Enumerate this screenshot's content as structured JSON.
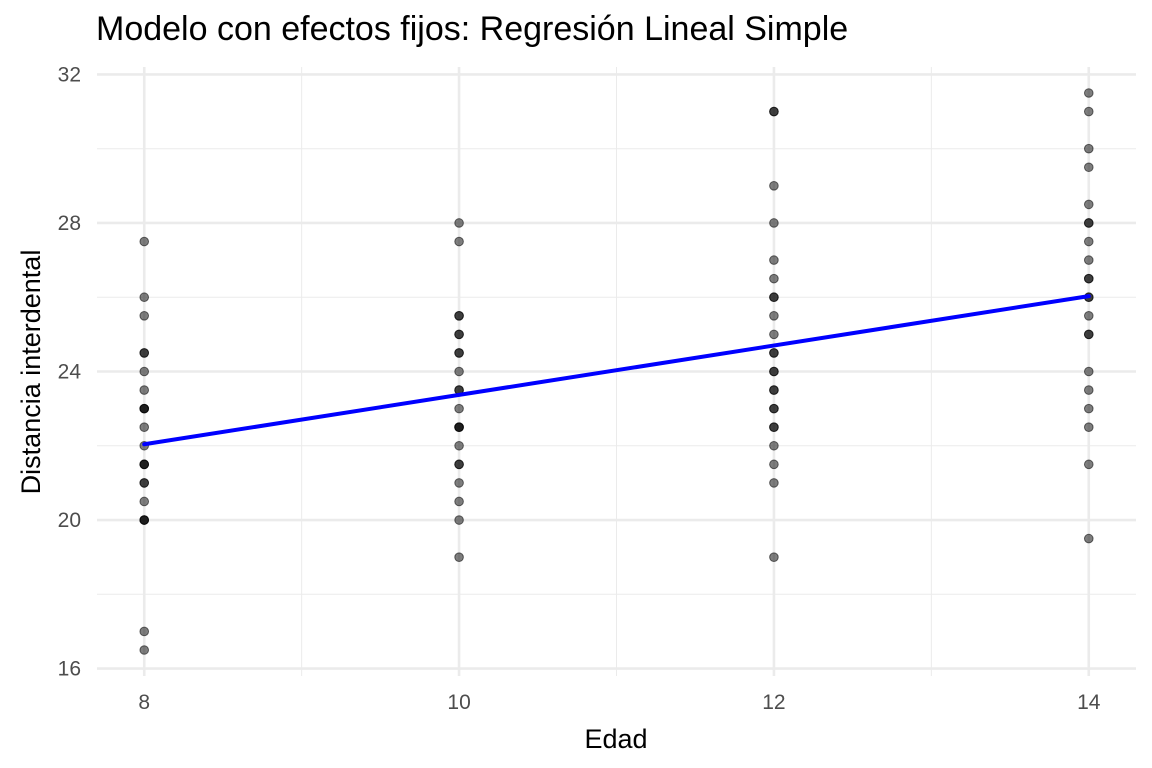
{
  "chart_data": {
    "type": "scatter",
    "title": "Modelo con efectos fijos: Regresión Lineal Simple",
    "xlabel": "Edad",
    "ylabel": "Distancia interdental",
    "xlim": [
      7.7,
      14.3
    ],
    "ylim": [
      15.8,
      32.2
    ],
    "x_ticks": [
      8,
      10,
      12,
      14
    ],
    "y_ticks": [
      16,
      20,
      24,
      28,
      32
    ],
    "grid": true,
    "legend": "none",
    "point_color": "#000000",
    "point_opacity": 0.5,
    "series": [
      {
        "type": "scatter",
        "points": [
          [
            8,
            27.5
          ],
          [
            8,
            26
          ],
          [
            8,
            25.5
          ],
          [
            8,
            24.5
          ],
          [
            8,
            24.5
          ],
          [
            8,
            24
          ],
          [
            8,
            23.5
          ],
          [
            8,
            23
          ],
          [
            8,
            23
          ],
          [
            8,
            23
          ],
          [
            8,
            22.5
          ],
          [
            8,
            22
          ],
          [
            8,
            21.5
          ],
          [
            8,
            21.5
          ],
          [
            8,
            21.5
          ],
          [
            8,
            21
          ],
          [
            8,
            21
          ],
          [
            8,
            20.5
          ],
          [
            8,
            20
          ],
          [
            8,
            20
          ],
          [
            8,
            20
          ],
          [
            8,
            17
          ],
          [
            8,
            16.5
          ],
          [
            10,
            28
          ],
          [
            10,
            27.5
          ],
          [
            10,
            25.5
          ],
          [
            10,
            25.5
          ],
          [
            10,
            25
          ],
          [
            10,
            25
          ],
          [
            10,
            24.5
          ],
          [
            10,
            24.5
          ],
          [
            10,
            24
          ],
          [
            10,
            23.5
          ],
          [
            10,
            23.5
          ],
          [
            10,
            23
          ],
          [
            10,
            22.5
          ],
          [
            10,
            22.5
          ],
          [
            10,
            22.5
          ],
          [
            10,
            22
          ],
          [
            10,
            21.5
          ],
          [
            10,
            21.5
          ],
          [
            10,
            21
          ],
          [
            10,
            20.5
          ],
          [
            10,
            20
          ],
          [
            10,
            19
          ],
          [
            12,
            31
          ],
          [
            12,
            31
          ],
          [
            12,
            29
          ],
          [
            12,
            28
          ],
          [
            12,
            27
          ],
          [
            12,
            26.5
          ],
          [
            12,
            26
          ],
          [
            12,
            26
          ],
          [
            12,
            25.5
          ],
          [
            12,
            25
          ],
          [
            12,
            24.5
          ],
          [
            12,
            24.5
          ],
          [
            12,
            24
          ],
          [
            12,
            24
          ],
          [
            12,
            23.5
          ],
          [
            12,
            23.5
          ],
          [
            12,
            23
          ],
          [
            12,
            23
          ],
          [
            12,
            22.5
          ],
          [
            12,
            22.5
          ],
          [
            12,
            22
          ],
          [
            12,
            21.5
          ],
          [
            12,
            21
          ],
          [
            12,
            19
          ],
          [
            14,
            31.5
          ],
          [
            14,
            31
          ],
          [
            14,
            30
          ],
          [
            14,
            29.5
          ],
          [
            14,
            28.5
          ],
          [
            14,
            28
          ],
          [
            14,
            28
          ],
          [
            14,
            27.5
          ],
          [
            14,
            27
          ],
          [
            14,
            26.5
          ],
          [
            14,
            26.5
          ],
          [
            14,
            26
          ],
          [
            14,
            26
          ],
          [
            14,
            25.5
          ],
          [
            14,
            25
          ],
          [
            14,
            25
          ],
          [
            14,
            24
          ],
          [
            14,
            23.5
          ],
          [
            14,
            23
          ],
          [
            14,
            22.5
          ],
          [
            14,
            21.5
          ],
          [
            14,
            19.5
          ]
        ]
      },
      {
        "type": "line",
        "color": "#0000ff",
        "x": [
          8,
          14
        ],
        "y": [
          22.04,
          26.03
        ]
      }
    ]
  }
}
